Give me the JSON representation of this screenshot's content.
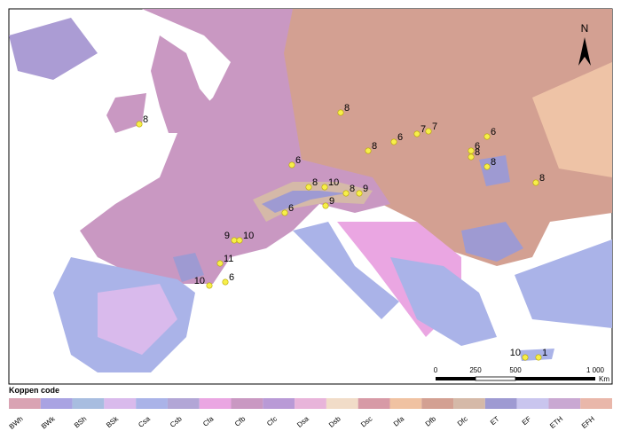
{
  "map": {
    "legend_title": "Koppen code",
    "legend": [
      {
        "code": "BWh",
        "color": "#d9a3b3"
      },
      {
        "code": "BWk",
        "color": "#a9a3e2"
      },
      {
        "code": "BSh",
        "color": "#a8bde0"
      },
      {
        "code": "BSk",
        "color": "#d9baec"
      },
      {
        "code": "Csa",
        "color": "#aab3e8"
      },
      {
        "code": "Csb",
        "color": "#b2a6d6"
      },
      {
        "code": "Cfa",
        "color": "#eaa6e2"
      },
      {
        "code": "Cfb",
        "color": "#c998c2"
      },
      {
        "code": "Cfc",
        "color": "#b99ad6"
      },
      {
        "code": "Dsa",
        "color": "#e8b4da"
      },
      {
        "code": "Dsb",
        "color": "#f1dcc8"
      },
      {
        "code": "Dsc",
        "color": "#d79aa6"
      },
      {
        "code": "Dfa",
        "color": "#f0c2a2"
      },
      {
        "code": "Dfb",
        "color": "#d3a092"
      },
      {
        "code": "Dfc",
        "color": "#d5b9a8"
      },
      {
        "code": "ET",
        "color": "#9e9ad2"
      },
      {
        "code": "EF",
        "color": "#c9c5ee"
      },
      {
        "code": "ETH",
        "color": "#c9a8d2"
      },
      {
        "code": "EFH",
        "color": "#e9b7aa"
      }
    ],
    "north": "N",
    "scale_labels": [
      "0",
      "250",
      "500",
      "1 000"
    ],
    "scale_unit": "Km",
    "points": [
      8,
      8,
      8,
      6,
      7,
      7,
      6,
      6,
      8,
      8,
      8,
      6,
      8,
      10,
      8,
      9,
      9,
      6,
      9,
      10,
      11,
      10,
      6,
      10,
      1
    ]
  }
}
